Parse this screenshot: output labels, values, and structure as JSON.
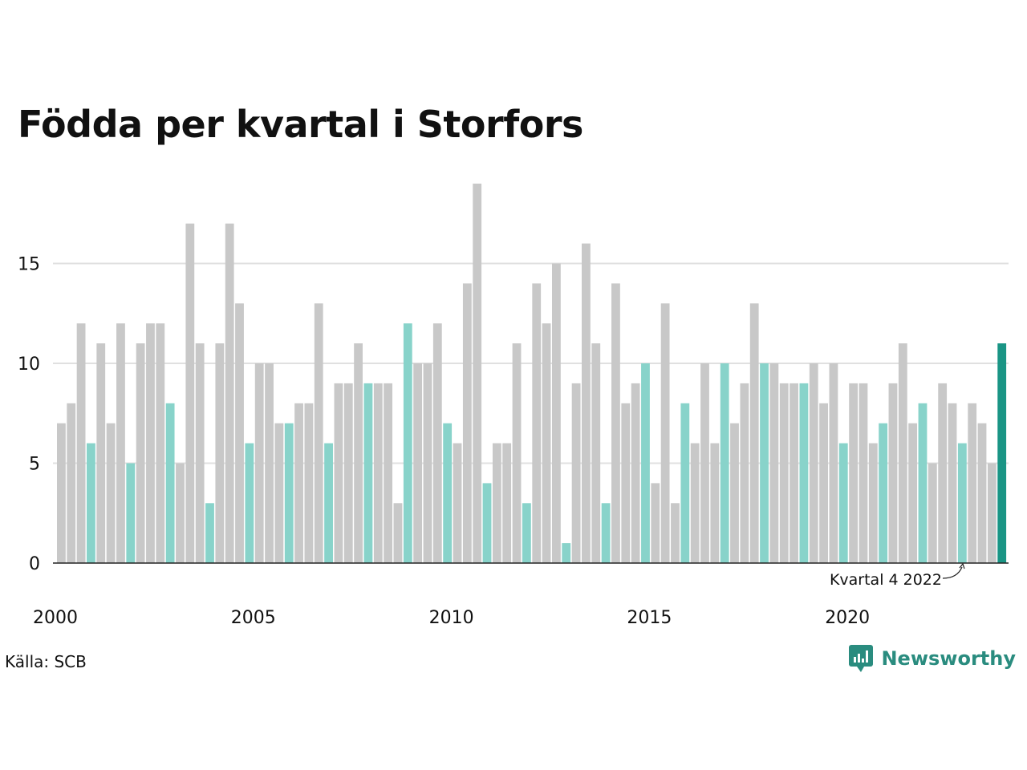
{
  "chart_data": {
    "type": "bar",
    "title": "Födda per kvartal i Storfors",
    "xlabel": "",
    "ylabel": "",
    "ylim": [
      0,
      19
    ],
    "yticks": [
      0,
      5,
      10,
      15
    ],
    "grid": true,
    "x_tick_labels": [
      "2000",
      "2005",
      "2010",
      "2015",
      "2020"
    ],
    "start_year": 2000,
    "annotation": "Kvartal 4 2022",
    "annotated_index": 91,
    "highlight_quarter": 4,
    "colors": {
      "default": "#c8c8c8",
      "highlight": "#88d3ca",
      "latest": "#1a9585"
    },
    "values": [
      7,
      8,
      12,
      6,
      11,
      7,
      12,
      5,
      11,
      12,
      12,
      8,
      5,
      17,
      11,
      3,
      11,
      17,
      13,
      6,
      10,
      10,
      7,
      7,
      8,
      8,
      13,
      6,
      9,
      9,
      11,
      9,
      9,
      9,
      3,
      12,
      10,
      10,
      12,
      7,
      6,
      14,
      19,
      4,
      6,
      6,
      11,
      3,
      14,
      12,
      15,
      1,
      9,
      16,
      11,
      3,
      14,
      8,
      9,
      10,
      4,
      13,
      3,
      8,
      6,
      10,
      6,
      10,
      7,
      9,
      13,
      10,
      10,
      9,
      9,
      9,
      10,
      8,
      10,
      6,
      9,
      9,
      6,
      7,
      9,
      11,
      7,
      8,
      5,
      9,
      8,
      6,
      8,
      7,
      5,
      11
    ]
  },
  "source": "Källa: SCB",
  "brand": {
    "name": "Newsworthy",
    "icon": "newsworthy-logo-icon"
  }
}
